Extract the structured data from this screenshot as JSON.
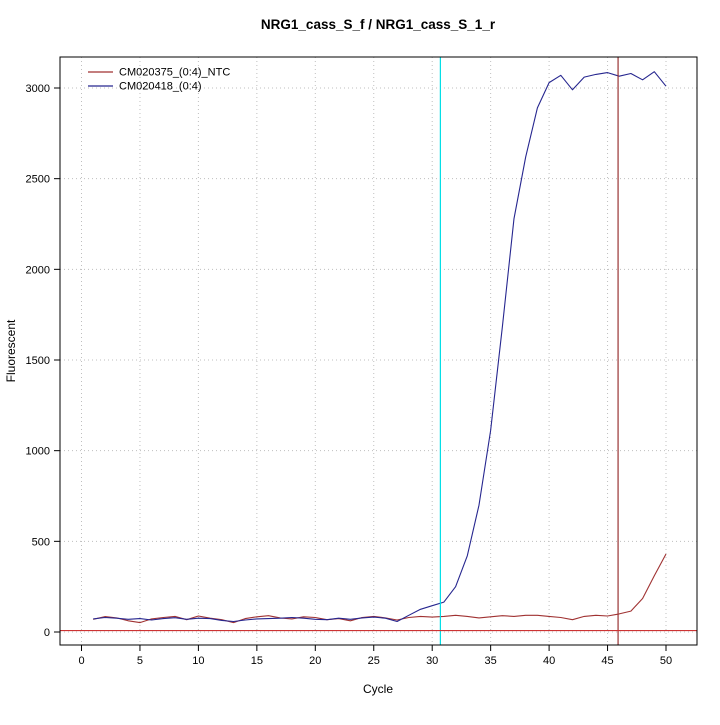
{
  "page": {
    "title": "NRG1_cass_S_f / NRG1_cass_S_1_r"
  },
  "chart_data": {
    "type": "line",
    "title": "NRG1_cass_S_f / NRG1_cass_S_1_r",
    "xlabel": "Cycle",
    "ylabel": "Fluorescent",
    "xlim": [
      -1.8,
      52.7
    ],
    "ylim": [
      -72,
      3171
    ],
    "xticks": [
      0,
      5,
      10,
      15,
      20,
      25,
      30,
      35,
      40,
      45,
      50
    ],
    "yticks": [
      0,
      500,
      1000,
      1500,
      2000,
      2500,
      3000
    ],
    "grid": true,
    "legend_position": "top-left",
    "x_start": 1,
    "x_step": 1,
    "series": [
      {
        "name": "CM020375_(0:4)_NTC",
        "color": "#a03232",
        "values": [
          70,
          85,
          78,
          62,
          52,
          72,
          80,
          86,
          68,
          88,
          76,
          68,
          52,
          74,
          84,
          90,
          78,
          72,
          84,
          80,
          68,
          74,
          62,
          80,
          86,
          78,
          66,
          80,
          86,
          82,
          86,
          92,
          86,
          78,
          84,
          90,
          86,
          92,
          92,
          86,
          80,
          68,
          86,
          92,
          88,
          100,
          115,
          185,
          310,
          430
        ]
      },
      {
        "name": "CM020418_(0:4)",
        "color": "#26268f",
        "values": [
          72,
          80,
          76,
          70,
          74,
          66,
          74,
          79,
          70,
          76,
          74,
          64,
          58,
          66,
          72,
          74,
          76,
          80,
          76,
          70,
          68,
          76,
          70,
          78,
          82,
          76,
          58,
          92,
          125,
          145,
          165,
          250,
          420,
          700,
          1110,
          1680,
          2280,
          2620,
          2890,
          3030,
          3070,
          2990,
          3060,
          3075,
          3085,
          3065,
          3080,
          3045,
          3090,
          3010
        ]
      }
    ],
    "reference_lines": {
      "vertical": [
        {
          "x": 30.7,
          "color": "#00dde6",
          "name": "threshold-cycle-line-cyan"
        },
        {
          "x": 45.9,
          "color": "#993333",
          "name": "cycle-marker-line-red"
        }
      ],
      "horizontal": [
        {
          "y": 8,
          "color": "#cd3333",
          "name": "baseline-threshold-line"
        }
      ]
    }
  }
}
